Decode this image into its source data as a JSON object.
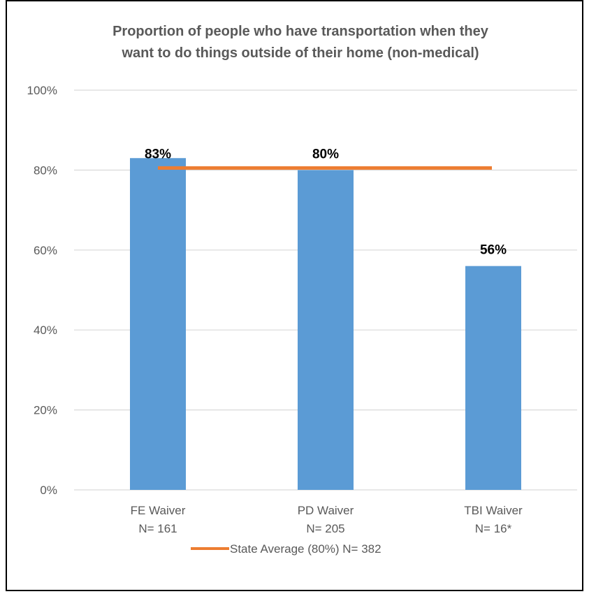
{
  "chart_data": {
    "type": "bar",
    "title_lines": [
      "Proportion of people who have transportation  when they",
      "want to do things outside of their home (non-medical)"
    ],
    "categories": [
      [
        "FE Waiver",
        "N= 161"
      ],
      [
        "PD Waiver",
        "N= 205"
      ],
      [
        "TBI Waiver",
        "N= 16*"
      ]
    ],
    "values": [
      83,
      80,
      56
    ],
    "data_labels": [
      "83%",
      "80%",
      "56%"
    ],
    "ylim": [
      0,
      100
    ],
    "yticks": [
      0,
      20,
      40,
      60,
      80,
      100
    ],
    "ytick_labels": [
      "0%",
      "20%",
      "40%",
      "60%",
      "80%",
      "100%"
    ],
    "reference_line": {
      "name": "State Average (80%) N= 382",
      "value": 80
    },
    "legend_position": "bottom",
    "grid": true,
    "colors": {
      "bar": "#5b9bd5",
      "line": "#ed7d31",
      "grid": "#d9d9d9",
      "text": "#595959"
    }
  }
}
